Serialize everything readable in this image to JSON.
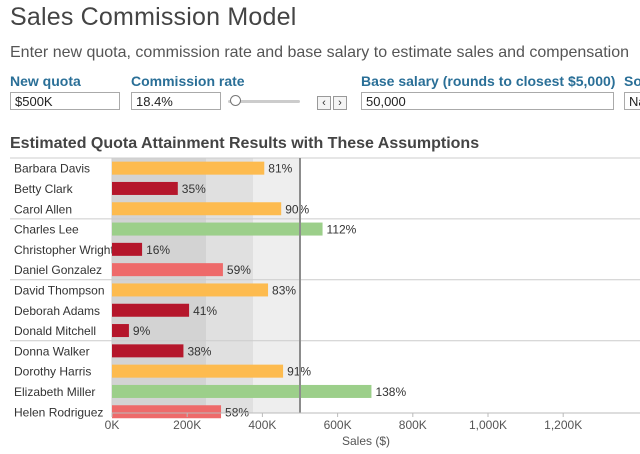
{
  "header": {
    "title": "Sales Commission Model",
    "subtitle": "Enter new quota, commission rate and base salary to estimate sales and compensation"
  },
  "params": {
    "quota": {
      "label": "New quota",
      "value": "$500K"
    },
    "commission": {
      "label": "Commission rate",
      "value": "18.4%",
      "slider_fraction": 0.1
    },
    "base_salary": {
      "label": "Base salary (rounds to closest $5,000)",
      "value": "50,000"
    },
    "cut_label": "So",
    "cut_value": "Na",
    "prev_glyph": "‹",
    "next_glyph": "›"
  },
  "section": {
    "title": "Estimated Quota Attainment Results with These Assumptions"
  },
  "colors": {
    "red": "#b5162b",
    "salmon": "#ee6a6a",
    "orange": "#fdbb4f",
    "green": "#9ccf8a",
    "band_dark": "#d3d3d3",
    "band_mid": "#e0e0e0",
    "band_light": "#eeeeee",
    "quota_line": "#8c8c8c"
  },
  "chart_data": {
    "type": "bar",
    "orientation": "horizontal",
    "categories": [
      "Barbara Davis",
      "Betty Clark",
      "Carol Allen",
      "Charles Lee",
      "Christopher Wright",
      "Daniel Gonzalez",
      "David Thompson",
      "Deborah Adams",
      "Donald Mitchell",
      "Donna Walker",
      "Dorothy Harris",
      "Elizabeth Miller",
      "Helen Rodriguez"
    ],
    "sales": [
      405000,
      175000,
      450000,
      560000,
      80000,
      295000,
      415000,
      205000,
      45000,
      190000,
      455000,
      690000,
      290000
    ],
    "attainment_labels": [
      "81%",
      "35%",
      "90%",
      "112%",
      "16%",
      "59%",
      "83%",
      "41%",
      "9%",
      "38%",
      "91%",
      "138%",
      "58%"
    ],
    "bar_color_keys": [
      "orange",
      "red",
      "orange",
      "green",
      "red",
      "salmon",
      "orange",
      "red",
      "red",
      "red",
      "orange",
      "green",
      "salmon"
    ],
    "xlabel": "Sales ($)",
    "xlim": [
      0,
      1200000
    ],
    "xticks": [
      0,
      200000,
      400000,
      600000,
      800000,
      1000000,
      1200000
    ],
    "xtick_labels": [
      "0K",
      "200K",
      "400K",
      "600K",
      "800K",
      "1,000K",
      "1,200K"
    ],
    "quota_line": 500000,
    "bands": [
      {
        "from": 0,
        "to": 250000,
        "color_key": "band_dark"
      },
      {
        "from": 250000,
        "to": 375000,
        "color_key": "band_mid"
      },
      {
        "from": 375000,
        "to": 500000,
        "color_key": "band_light"
      }
    ],
    "row_groups": [
      3,
      3,
      3,
      4
    ]
  }
}
